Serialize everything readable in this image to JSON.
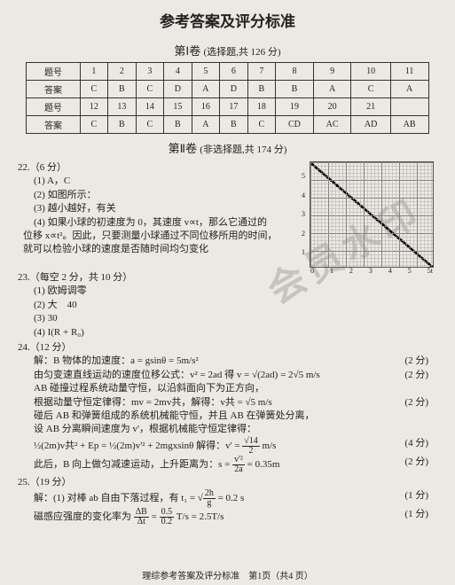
{
  "title_main": "参考答案及评分标准",
  "part1": {
    "label": "第Ⅰ卷",
    "sub": "(选择题,共 126 分)"
  },
  "table": {
    "row_labels": [
      "题号",
      "答案",
      "题号",
      "答案"
    ],
    "r1": [
      "1",
      "2",
      "3",
      "4",
      "5",
      "6",
      "7",
      "8",
      "9",
      "10",
      "11"
    ],
    "r2": [
      "C",
      "B",
      "C",
      "D",
      "A",
      "D",
      "B",
      "B",
      "A",
      "C",
      "A"
    ],
    "r3": [
      "12",
      "13",
      "14",
      "15",
      "16",
      "17",
      "18",
      "19",
      "20",
      "21",
      ""
    ],
    "r4": [
      "C",
      "B",
      "C",
      "B",
      "A",
      "B",
      "C",
      "CD",
      "AC",
      "AD",
      "AB"
    ]
  },
  "part2": {
    "label": "第Ⅱ卷",
    "sub": "(非选择题,共 174 分)"
  },
  "q22": {
    "head": "22.（6 分）",
    "l1": "(1) A，C",
    "l2": "(2) 如图所示：",
    "l3": "(3) 越小越好，有关",
    "l4a": "(4) 如果小球的初速度为 0，其速度 v∝t，那么它通过的",
    "l4b": "位移 x∝t²。因此，只要测量小球通过不同位移所用的时间，",
    "l4c": "就可以检验小球的速度是否随时间均匀变化"
  },
  "chart": {
    "x_ticks": [
      "0",
      "1",
      "2",
      "3",
      "4",
      "5",
      "5t"
    ],
    "y_ticks": [
      "",
      "1",
      "2",
      "3",
      "4",
      "5",
      ""
    ]
  },
  "q23": {
    "head": "23.（每空 2 分，共 10 分）",
    "l1": "(1) 欧姆调零",
    "l2": "(2) 大　40",
    "l3": "(3) 30",
    "l4": "(4) I(R + R₀)"
  },
  "q24": {
    "head": "24.（12 分）",
    "l1": "解：B 物体的加速度：a = gsinθ = 5m/s²",
    "l2": "由匀变速直线运动的速度位移公式：v² = 2ad 得 v = √(2ad) = 2√5 m/s",
    "l3": "AB 碰撞过程系统动量守恒，以沿斜面向下为正方向，",
    "l4": "根据动量守恒定律得：mv = 2mv共，解得：v共 = √5 m/s",
    "l5": "碰后 AB 和弹簧组成的系统机械能守恒，并且 AB 在弹簧处分离，",
    "l6": "设 AB 分离瞬间速度为 v'，根据机械能守恒定律得：",
    "l7a": "½(2m)v共² + Ep = ½(2m)v'² + 2mgxsinθ 解得：v' = ",
    "l7b_n": "√14",
    "l7b_d": "2",
    "l7c": " m/s",
    "l8a": "此后，B 向上做匀减速运动，上升距离为：s = ",
    "l8b_n": "v'²",
    "l8b_d": "2a",
    "l8c": " = 0.35m",
    "s1": "(2 分)",
    "s2": "(2 分)",
    "s4": "(2 分)",
    "s7": "(4 分)",
    "s8": "(2 分)"
  },
  "q25": {
    "head": "25.（19 分）",
    "l1a": "解：(1) 对棒 ab 自由下落过程，有 t₁ = √",
    "l1b_n": "2h",
    "l1b_d": "g",
    "l1c": " = 0.2 s",
    "l2a": "磁感应强度的变化率为 ",
    "l2b_n": "ΔB",
    "l2b_d": "Δt",
    "l2c": " = ",
    "l2d_n": "0.5",
    "l2d_d": "0.2",
    "l2e": " T/s = 2.5T/s",
    "s1": "(1 分)",
    "s2": "(1 分)"
  },
  "footer": "理综参考答案及评分标准　第1页（共4 页）",
  "watermark": "会员水印"
}
